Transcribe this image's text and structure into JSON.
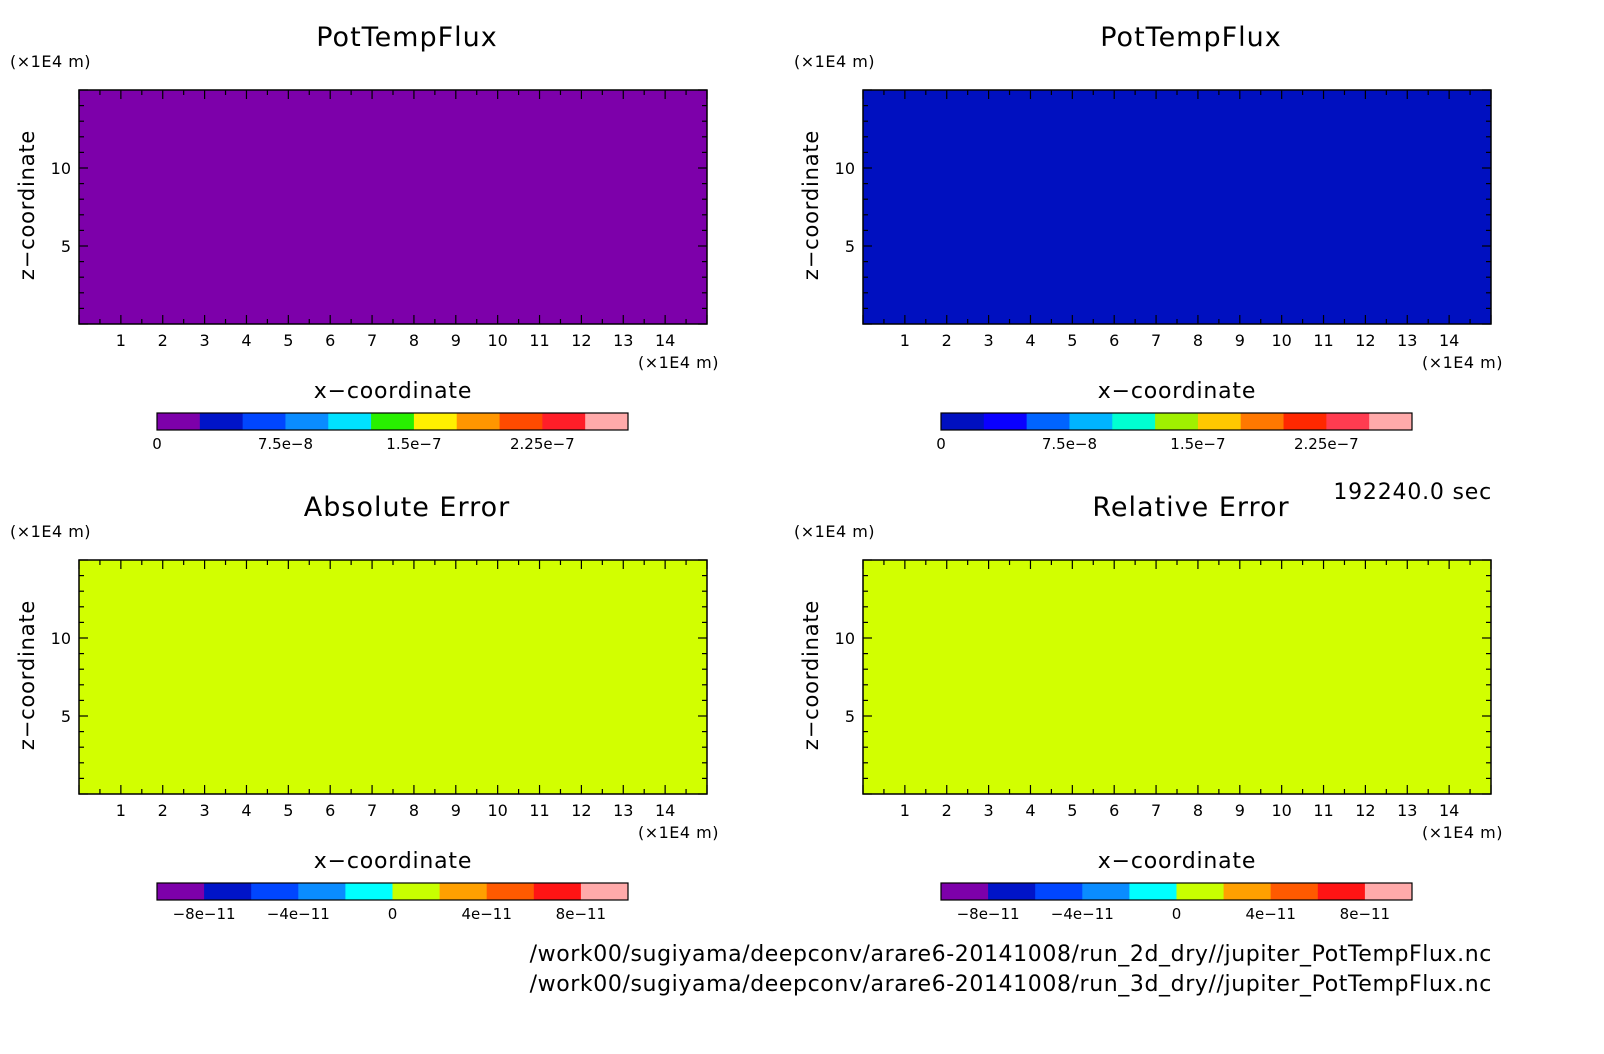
{
  "time_label": "192240.0 sec",
  "footer": {
    "file1": "/work00/sugiyama/deepconv/arare6-20141008/run_2d_dry//jupiter_PotTempFlux.nc",
    "file2": "/work00/sugiyama/deepconv/arare6-20141008/run_3d_dry//jupiter_PotTempFlux.nc"
  },
  "chart_data": [
    {
      "type": "heatmap",
      "title": "PotTempFlux",
      "xlabel": "x−coordinate",
      "ylabel": "z−coordinate",
      "x_unit": "(×1E4 m)",
      "y_unit": "(×1E4 m)",
      "xlim": [
        0,
        15
      ],
      "ylim": [
        0,
        15
      ],
      "x_ticks": [
        1,
        2,
        3,
        4,
        5,
        6,
        7,
        8,
        9,
        10,
        11,
        12,
        13,
        14
      ],
      "y_ticks": [
        5,
        10
      ],
      "field_color": "#7d00aa",
      "field_value": 0,
      "colorbar": {
        "colors": [
          "#7d00aa",
          "#0014c8",
          "#0046ff",
          "#0a8cff",
          "#00e1ff",
          "#28f000",
          "#fff000",
          "#ff9600",
          "#ff4b00",
          "#ff1e28",
          "#ffaaaa"
        ],
        "labels": [
          "0",
          "7.5e−8",
          "1.5e−7",
          "2.25e−7"
        ],
        "label_values": [
          0,
          7.5e-08,
          1.5e-07,
          2.25e-07
        ],
        "range": [
          0,
          2.75e-07
        ]
      }
    },
    {
      "type": "heatmap",
      "title": "PotTempFlux",
      "xlabel": "x−coordinate",
      "ylabel": "z−coordinate",
      "x_unit": "(×1E4 m)",
      "y_unit": "(×1E4 m)",
      "xlim": [
        0,
        15
      ],
      "ylim": [
        0,
        15
      ],
      "x_ticks": [
        1,
        2,
        3,
        4,
        5,
        6,
        7,
        8,
        9,
        10,
        11,
        12,
        13,
        14
      ],
      "y_ticks": [
        5,
        10
      ],
      "field_color": "#0010c0",
      "field_value": 0,
      "colorbar": {
        "colors": [
          "#0010c0",
          "#0a00ff",
          "#0064ff",
          "#00b4ff",
          "#00ffd2",
          "#a0f000",
          "#ffc800",
          "#ff7800",
          "#ff2800",
          "#ff3c50",
          "#ffaaaa"
        ],
        "labels": [
          "0",
          "7.5e−8",
          "1.5e−7",
          "2.25e−7"
        ],
        "label_values": [
          0,
          7.5e-08,
          1.5e-07,
          2.25e-07
        ],
        "range": [
          0,
          2.75e-07
        ]
      }
    },
    {
      "type": "heatmap",
      "title": "Absolute Error",
      "xlabel": "x−coordinate",
      "ylabel": "z−coordinate",
      "x_unit": "(×1E4 m)",
      "y_unit": "(×1E4 m)",
      "xlim": [
        0,
        15
      ],
      "ylim": [
        0,
        15
      ],
      "x_ticks": [
        1,
        2,
        3,
        4,
        5,
        6,
        7,
        8,
        9,
        10,
        11,
        12,
        13,
        14
      ],
      "y_ticks": [
        5,
        10
      ],
      "field_color": "#d2ff00",
      "field_value": 0,
      "colorbar": {
        "colors": [
          "#7d00aa",
          "#0014c8",
          "#0046ff",
          "#0a8cff",
          "#00ffff",
          "#c8ff00",
          "#ffa000",
          "#ff5a00",
          "#ff1414",
          "#ffaaaa"
        ],
        "labels": [
          "−8e−11",
          "−4e−11",
          "0",
          "4e−11",
          "8e−11"
        ],
        "label_values": [
          -8e-11,
          -4e-11,
          0,
          4e-11,
          8e-11
        ],
        "range": [
          -1e-10,
          1e-10
        ]
      }
    },
    {
      "type": "heatmap",
      "title": "Relative Error",
      "xlabel": "x−coordinate",
      "ylabel": "z−coordinate",
      "x_unit": "(×1E4 m)",
      "y_unit": "(×1E4 m)",
      "xlim": [
        0,
        15
      ],
      "ylim": [
        0,
        15
      ],
      "x_ticks": [
        1,
        2,
        3,
        4,
        5,
        6,
        7,
        8,
        9,
        10,
        11,
        12,
        13,
        14
      ],
      "y_ticks": [
        5,
        10
      ],
      "field_color": "#d2ff00",
      "field_value": 0,
      "colorbar": {
        "colors": [
          "#7d00aa",
          "#0014c8",
          "#0046ff",
          "#0a8cff",
          "#00ffff",
          "#c8ff00",
          "#ffa000",
          "#ff5a00",
          "#ff1414",
          "#ffaaaa"
        ],
        "labels": [
          "−8e−11",
          "−4e−11",
          "0",
          "4e−11",
          "8e−11"
        ],
        "label_values": [
          -8e-11,
          -4e-11,
          0,
          4e-11,
          8e-11
        ],
        "range": [
          -1e-10,
          1e-10
        ]
      }
    }
  ]
}
